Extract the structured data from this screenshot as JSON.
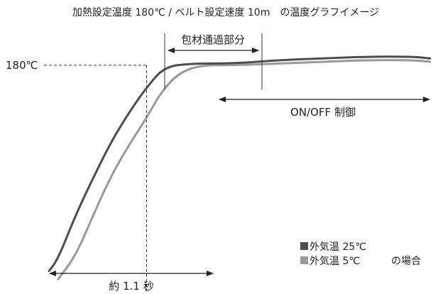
{
  "chart_data": {
    "type": "line",
    "title": "加熱設定温度 180℃ / ベルト設定速度 10m　の温度グラフイメージ",
    "xlabel": "",
    "ylabel": "",
    "y_reference": {
      "label": "180℃",
      "value": 180
    },
    "x_unit": "秒",
    "xlim": [
      -1.15,
      3.25
    ],
    "ylim": [
      50,
      210
    ],
    "grid": false,
    "legend_position": "bottom-right",
    "series": [
      {
        "name": "外気温 25℃",
        "color": "#4d4d4d",
        "x": [
          -1.1,
          -1.0,
          -0.8,
          -0.6,
          -0.4,
          -0.2,
          0.0,
          0.2,
          0.5,
          1.0,
          1.5,
          2.0,
          2.5,
          3.0,
          3.2
        ],
        "y": [
          59,
          66,
          92,
          114,
          135,
          152,
          167,
          179,
          181,
          181,
          183,
          184,
          185,
          185,
          184
        ]
      },
      {
        "name": "外気温 5℃",
        "color": "#999999",
        "x": [
          -1.0,
          -0.8,
          -0.6,
          -0.4,
          -0.2,
          0.0,
          0.15,
          0.35,
          0.6,
          1.0,
          1.5,
          2.0,
          2.5,
          3.0,
          3.2
        ],
        "y": [
          54,
          68,
          92,
          115,
          133,
          149,
          163,
          175,
          180,
          180,
          181,
          182,
          183,
          183,
          182
        ]
      }
    ],
    "annotations": {
      "packaging": "包材通過部分",
      "onoff": "ON/OFF 制御",
      "time": "約 1.1 秒"
    },
    "legend": {
      "suffix": "の場合"
    }
  }
}
